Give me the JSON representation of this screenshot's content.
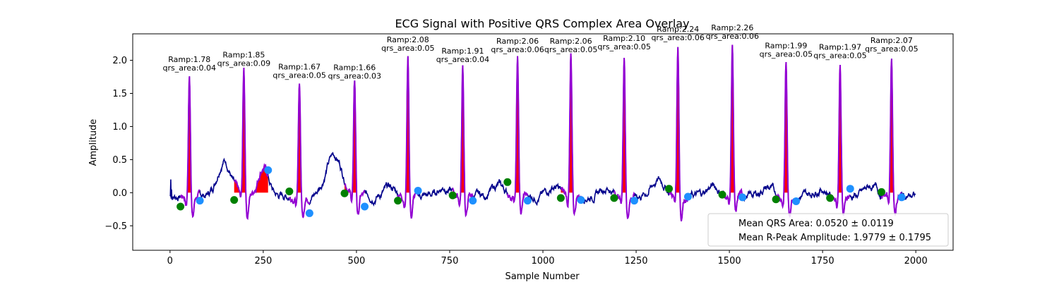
{
  "chart_data": {
    "type": "line",
    "title": "ECG Signal with Positive QRS Complex Area Overlay",
    "xlabel": "Sample Number",
    "ylabel": "Amplitude",
    "xlim": [
      -100,
      2100
    ],
    "ylim": [
      -0.87,
      2.4
    ],
    "xticks": [
      0,
      250,
      500,
      750,
      1000,
      1250,
      1500,
      1750,
      2000
    ],
    "yticks": [
      -0.5,
      0.0,
      0.5,
      1.0,
      1.5,
      2.0
    ],
    "xtick_labels": [
      "0",
      "250",
      "500",
      "750",
      "1000",
      "1250",
      "1500",
      "1750",
      "2000"
    ],
    "ytick_labels": [
      "−0.5",
      "0.0",
      "0.5",
      "1.0",
      "1.5",
      "2.0"
    ],
    "grid": false,
    "colors": {
      "signal": "#00008b",
      "qrs_segment": "#9400d3",
      "qrs_area": "#ff0000",
      "onset_marker": "#008000",
      "offset_marker": "#1e90ff"
    },
    "beats": [
      {
        "r_sample": 52,
        "r_amp": 1.78,
        "qrs_area": 0.04,
        "onset_sample": 28,
        "onset_amp": -0.21,
        "offset_sample": 80,
        "offset_amp": -0.12,
        "label_ramp": "Ramp:1.78",
        "label_area": "qrs_area:0.04"
      },
      {
        "r_sample": 198,
        "r_amp": 1.85,
        "qrs_area": 0.09,
        "onset_sample": 172,
        "onset_amp": -0.11,
        "offset_sample": 263,
        "offset_amp": 0.34,
        "label_ramp": "Ramp:1.85",
        "label_area": "qrs_area:0.09"
      },
      {
        "r_sample": 347,
        "r_amp": 1.67,
        "qrs_area": 0.05,
        "onset_sample": 320,
        "onset_amp": 0.02,
        "offset_sample": 374,
        "offset_amp": -0.31,
        "label_ramp": "Ramp:1.67",
        "label_area": "qrs_area:0.05"
      },
      {
        "r_sample": 495,
        "r_amp": 1.66,
        "qrs_area": 0.03,
        "onset_sample": 468,
        "onset_amp": -0.01,
        "offset_sample": 522,
        "offset_amp": -0.21,
        "label_ramp": "Ramp:1.66",
        "label_area": "qrs_area:0.03"
      },
      {
        "r_sample": 638,
        "r_amp": 2.08,
        "qrs_area": 0.05,
        "onset_sample": 611,
        "onset_amp": -0.12,
        "offset_sample": 665,
        "offset_amp": 0.03,
        "label_ramp": "Ramp:2.08",
        "label_area": "qrs_area:0.05"
      },
      {
        "r_sample": 785,
        "r_amp": 1.91,
        "qrs_area": 0.04,
        "onset_sample": 758,
        "onset_amp": -0.04,
        "offset_sample": 812,
        "offset_amp": -0.12,
        "label_ramp": "Ramp:1.91",
        "label_area": "qrs_area:0.04"
      },
      {
        "r_sample": 932,
        "r_amp": 2.06,
        "qrs_area": 0.06,
        "onset_sample": 905,
        "onset_amp": 0.16,
        "offset_sample": 959,
        "offset_amp": -0.12,
        "label_ramp": "Ramp:2.06",
        "label_area": "qrs_area:0.06"
      },
      {
        "r_sample": 1075,
        "r_amp": 2.06,
        "qrs_area": 0.05,
        "onset_sample": 1048,
        "onset_amp": -0.08,
        "offset_sample": 1102,
        "offset_amp": -0.11,
        "label_ramp": "Ramp:2.06",
        "label_area": "qrs_area:0.05"
      },
      {
        "r_sample": 1218,
        "r_amp": 2.1,
        "qrs_area": 0.05,
        "onset_sample": 1191,
        "onset_amp": -0.08,
        "offset_sample": 1245,
        "offset_amp": -0.12,
        "label_ramp": "Ramp:2.10",
        "label_area": "qrs_area:0.05"
      },
      {
        "r_sample": 1362,
        "r_amp": 2.24,
        "qrs_area": 0.06,
        "onset_sample": 1338,
        "onset_amp": 0.06,
        "offset_sample": 1389,
        "offset_amp": -0.06,
        "label_ramp": "Ramp:2.24",
        "label_area": "qrs_area:0.06"
      },
      {
        "r_sample": 1508,
        "r_amp": 2.26,
        "qrs_area": 0.06,
        "onset_sample": 1481,
        "onset_amp": -0.03,
        "offset_sample": 1535,
        "offset_amp": -0.07,
        "label_ramp": "Ramp:2.26",
        "label_area": "qrs_area:0.06"
      },
      {
        "r_sample": 1652,
        "r_amp": 1.99,
        "qrs_area": 0.05,
        "onset_sample": 1625,
        "onset_amp": -0.1,
        "offset_sample": 1679,
        "offset_amp": -0.13,
        "label_ramp": "Ramp:1.99",
        "label_area": "qrs_area:0.05"
      },
      {
        "r_sample": 1797,
        "r_amp": 1.97,
        "qrs_area": 0.05,
        "onset_sample": 1770,
        "onset_amp": -0.08,
        "offset_sample": 1824,
        "offset_amp": 0.06,
        "label_ramp": "Ramp:1.97",
        "label_area": "qrs_area:0.05"
      },
      {
        "r_sample": 1935,
        "r_amp": 2.07,
        "qrs_area": 0.05,
        "onset_sample": 1908,
        "onset_amp": 0.01,
        "offset_sample": 1962,
        "offset_amp": -0.07,
        "label_ramp": "Ramp:2.07",
        "label_area": "qrs_area:0.05"
      }
    ],
    "background_waves": [
      {
        "center": 145,
        "amp": 0.55,
        "width": 18
      },
      {
        "center": 250,
        "amp": 0.45,
        "width": 14
      },
      {
        "center": 440,
        "amp": 0.62,
        "width": 22
      },
      {
        "center": 590,
        "amp": 0.12,
        "width": 16
      },
      {
        "center": 735,
        "amp": 0.14,
        "width": 16
      },
      {
        "center": 880,
        "amp": 0.16,
        "width": 16
      },
      {
        "center": 1030,
        "amp": 0.14,
        "width": 16
      },
      {
        "center": 1170,
        "amp": 0.13,
        "width": 16
      },
      {
        "center": 1310,
        "amp": 0.24,
        "width": 18
      },
      {
        "center": 1455,
        "amp": 0.15,
        "width": 16
      },
      {
        "center": 1600,
        "amp": 0.13,
        "width": 16
      },
      {
        "center": 1745,
        "amp": 0.12,
        "width": 16
      },
      {
        "center": 1880,
        "amp": 0.14,
        "width": 16
      }
    ],
    "legend": {
      "placement": "lower right",
      "entries": [
        "Mean QRS Area: 0.0520 ± 0.0119",
        "Mean R-Peak Amplitude: 1.9779 ± 0.1795"
      ]
    }
  }
}
